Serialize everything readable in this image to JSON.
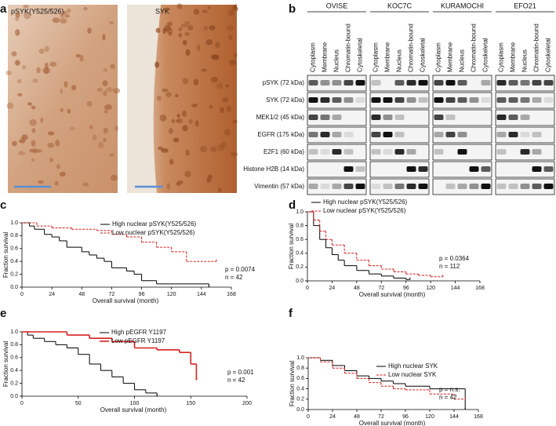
{
  "panel_labels": [
    "a",
    "b"
  ],
  "images": [
    {
      "label": "pSYK(Y525/526)"
    },
    {
      "label": "SYK"
    }
  ],
  "blot": {
    "cell_lines": [
      "OVISE",
      "KOC7C",
      "KURAMOCHI",
      "EFO21"
    ],
    "fractions": [
      "Cytoplasm",
      "Membrane",
      "Nucleus",
      "Chromatin-bound",
      "Cytoskeletal"
    ],
    "proteins": [
      "pSYK (72 kDa)",
      "SYK (72 kDa)",
      "MEK1/2 (45 kDa)",
      "EGFR (175 kDa)",
      "E2F1 (60 kDa)",
      "Histone H2B (14 kDa)",
      "Vimentin (57 kDa)"
    ]
  },
  "chart_data": [
    {
      "type": "step",
      "label": "c",
      "xlabel": "Overall survival (month)",
      "ylabel": "Fraction survival",
      "xlim": [
        0,
        168
      ],
      "xticks": [
        0,
        24,
        48,
        72,
        96,
        120,
        144,
        168
      ],
      "ylim": [
        0,
        1
      ],
      "yticks": [
        {
          "value": 0,
          "label": "0.0"
        },
        {
          "value": 0.2,
          "label": "0.2"
        },
        {
          "value": 0.4,
          "label": "0.4"
        },
        {
          "value": 0.6,
          "label": "0.6"
        },
        {
          "value": 0.8,
          "label": "0.8"
        },
        {
          "value": 1,
          "label": "1.0"
        }
      ],
      "annotations": [
        "p = 0.0074",
        "n = 42"
      ],
      "series": [
        {
          "name": "High nuclear pSYK(Y525/526)",
          "color": "#000000",
          "dashed": false,
          "x": [
            0,
            6,
            10,
            18,
            24,
            30,
            36,
            48,
            54,
            60,
            66,
            72,
            84,
            90,
            96,
            108,
            150
          ],
          "values": [
            1,
            0.95,
            0.9,
            0.82,
            0.78,
            0.72,
            0.62,
            0.55,
            0.5,
            0.45,
            0.4,
            0.3,
            0.25,
            0.2,
            0.1,
            0.05,
            0
          ]
        },
        {
          "name": "Low nuclear pSYK(Y525/526)",
          "color": "#d62020",
          "dashed": true,
          "x": [
            0,
            12,
            24,
            40,
            60,
            72,
            84,
            96,
            108,
            120,
            132,
            156
          ],
          "values": [
            1,
            0.95,
            0.92,
            0.9,
            0.88,
            0.82,
            0.78,
            0.7,
            0.62,
            0.55,
            0.4,
            0.4
          ]
        }
      ]
    },
    {
      "type": "step",
      "label": "d",
      "xlabel": "Overall survival (month)",
      "ylabel": "Fraction survival",
      "xlim": [
        0,
        168
      ],
      "xticks": [
        0,
        24,
        48,
        72,
        96,
        120,
        144,
        168
      ],
      "ylim": [
        0,
        1
      ],
      "yticks": [
        {
          "value": 0,
          "label": "0.0"
        },
        {
          "value": 0.2,
          "label": "0.2"
        },
        {
          "value": 0.4,
          "label": "0.4"
        },
        {
          "value": 0.6,
          "label": "0.6"
        },
        {
          "value": 0.8,
          "label": "0.8"
        },
        {
          "value": 1,
          "label": "1.0"
        }
      ],
      "annotations": [
        "p = 0.0364",
        "n = 112"
      ],
      "series": [
        {
          "name": "High nuclear pSYK(Y525/526)",
          "color": "#000000",
          "dashed": false,
          "x": [
            0,
            6,
            12,
            18,
            24,
            30,
            36,
            48,
            60,
            72,
            84,
            96,
            100
          ],
          "values": [
            1,
            0.8,
            0.6,
            0.48,
            0.38,
            0.3,
            0.22,
            0.15,
            0.1,
            0.07,
            0.04,
            0.02,
            0.02
          ]
        },
        {
          "name": "Low nuclear pSYK(Y525/526)",
          "color": "#d62020",
          "dashed": true,
          "x": [
            0,
            6,
            12,
            18,
            24,
            36,
            48,
            60,
            72,
            84,
            96,
            108,
            120,
            132
          ],
          "values": [
            1,
            0.88,
            0.72,
            0.6,
            0.52,
            0.4,
            0.3,
            0.22,
            0.17,
            0.13,
            0.1,
            0.08,
            0.06,
            0.06
          ]
        }
      ]
    },
    {
      "type": "step",
      "label": "e",
      "xlabel": "Overall survival (month)",
      "ylabel": "Fraction survival",
      "xlim": [
        0,
        200
      ],
      "xticks": [
        0,
        50,
        100,
        150,
        200
      ],
      "ylim": [
        0,
        1
      ],
      "yticks": [
        {
          "value": 0,
          "label": "0.0"
        },
        {
          "value": 0.2,
          "label": "0.2"
        },
        {
          "value": 0.4,
          "label": "0.4"
        },
        {
          "value": 0.6,
          "label": "0.6"
        },
        {
          "value": 0.8,
          "label": "0.8"
        },
        {
          "value": 1,
          "label": "1.0"
        }
      ],
      "annotations": [
        "p = 0.001",
        "n = 42"
      ],
      "series": [
        {
          "name": "High pEGFR Y1197",
          "color": "#000000",
          "dashed": false,
          "x": [
            0,
            5,
            10,
            20,
            30,
            40,
            50,
            60,
            70,
            80,
            90,
            100,
            110,
            120
          ],
          "values": [
            1,
            0.95,
            0.9,
            0.85,
            0.8,
            0.75,
            0.65,
            0.5,
            0.4,
            0.3,
            0.2,
            0.1,
            0.05,
            0
          ]
        },
        {
          "name": "Low pEGFR Y1197",
          "color": "#d62020",
          "dashed": false,
          "x": [
            0,
            20,
            40,
            60,
            80,
            100,
            120,
            140,
            150,
            155
          ],
          "values": [
            1,
            1,
            0.95,
            0.9,
            0.85,
            0.75,
            0.72,
            0.68,
            0.5,
            0.25
          ]
        }
      ]
    },
    {
      "type": "step",
      "label": "f",
      "xlabel": "Overall survival (month)",
      "ylabel": "Fraction survival",
      "xlim": [
        0,
        168
      ],
      "xticks": [
        0,
        24,
        48,
        72,
        96,
        120,
        144,
        168
      ],
      "ylim": [
        0,
        1
      ],
      "yticks": [
        {
          "value": 0,
          "label": "0.0"
        },
        {
          "value": 0.2,
          "label": "0.2"
        },
        {
          "value": 0.4,
          "label": "0.4"
        },
        {
          "value": 0.6,
          "label": "0.6"
        },
        {
          "value": 0.8,
          "label": "0.8"
        },
        {
          "value": 1,
          "label": "1.0"
        }
      ],
      "annotations": [
        "p = n.s.",
        "n = 42"
      ],
      "series": [
        {
          "name": "High nuclear SYK",
          "color": "#000000",
          "dashed": false,
          "x": [
            0,
            12,
            24,
            36,
            48,
            60,
            72,
            84,
            96,
            120,
            144,
            155
          ],
          "values": [
            1,
            0.95,
            0.85,
            0.75,
            0.65,
            0.6,
            0.55,
            0.5,
            0.45,
            0.4,
            0.4,
            0
          ]
        },
        {
          "name": "Low nuclear SYK",
          "color": "#d62020",
          "dashed": true,
          "x": [
            0,
            12,
            24,
            36,
            48,
            60,
            72,
            84,
            96,
            120,
            144,
            155
          ],
          "values": [
            1,
            0.92,
            0.8,
            0.7,
            0.6,
            0.52,
            0.45,
            0.4,
            0.38,
            0.3,
            0.2,
            0.2
          ]
        }
      ]
    }
  ]
}
